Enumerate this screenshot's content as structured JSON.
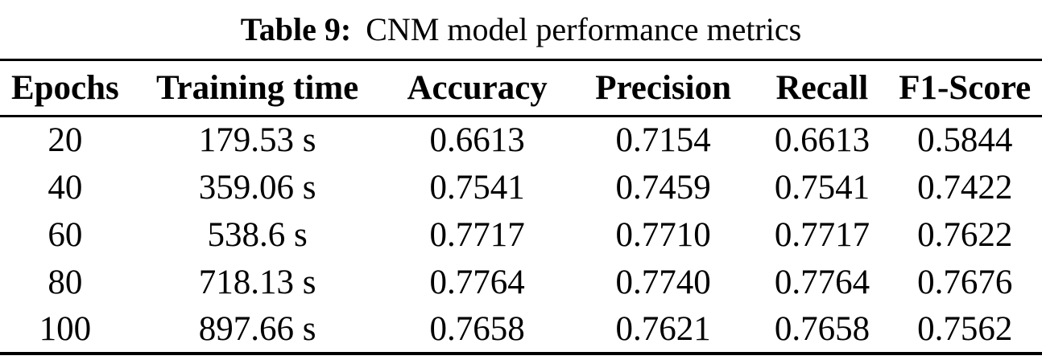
{
  "table": {
    "caption": {
      "label": "Table 9:",
      "text": "CNM model performance metrics"
    },
    "columns": [
      "Epochs",
      "Training time",
      "Accuracy",
      "Precision",
      "Recall",
      "F1-Score"
    ],
    "rows": [
      [
        "20",
        "179.53 s",
        "0.6613",
        "0.7154",
        "0.6613",
        "0.5844"
      ],
      [
        "40",
        "359.06 s",
        "0.7541",
        "0.7459",
        "0.7541",
        "0.7422"
      ],
      [
        "60",
        "538.6 s",
        "0.7717",
        "0.7710",
        "0.7717",
        "0.7622"
      ],
      [
        "80",
        "718.13 s",
        "0.7764",
        "0.7740",
        "0.7764",
        "0.7676"
      ],
      [
        "100",
        "897.66 s",
        "0.7658",
        "0.7621",
        "0.7658",
        "0.7562"
      ]
    ],
    "colors": {
      "text": "#000000",
      "background": "#ffffff",
      "rule": "#000000"
    }
  },
  "chart_data": {
    "type": "table",
    "title": "Table 9: CNM model performance metrics",
    "categories": [
      "Epochs",
      "Training time",
      "Accuracy",
      "Precision",
      "Recall",
      "F1-Score"
    ],
    "series": [
      {
        "name": "epochs",
        "values": [
          20,
          40,
          60,
          80,
          100
        ]
      },
      {
        "name": "training_time_s",
        "values": [
          179.53,
          359.06,
          538.6,
          718.13,
          897.66
        ]
      },
      {
        "name": "accuracy",
        "values": [
          0.6613,
          0.7541,
          0.7717,
          0.7764,
          0.7658
        ]
      },
      {
        "name": "precision",
        "values": [
          0.7154,
          0.7459,
          0.771,
          0.774,
          0.7621
        ]
      },
      {
        "name": "recall",
        "values": [
          0.6613,
          0.7541,
          0.7717,
          0.7764,
          0.7658
        ]
      },
      {
        "name": "f1_score",
        "values": [
          0.5844,
          0.7422,
          0.7622,
          0.7676,
          0.7562
        ]
      }
    ]
  }
}
